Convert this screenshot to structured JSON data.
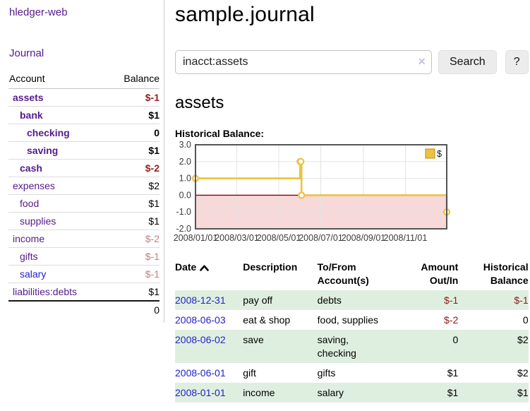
{
  "app_title": "hledger-web",
  "sidebar": {
    "journal_link": "Journal",
    "accounts": {
      "header_account": "Account",
      "header_balance": "Balance",
      "rows": [
        {
          "name": "assets",
          "balance": "$-1",
          "level": 1,
          "bold": true
        },
        {
          "name": "bank",
          "balance": "$1",
          "level": 2,
          "bold": true
        },
        {
          "name": "checking",
          "balance": "0",
          "level": 3,
          "bold": true
        },
        {
          "name": "saving",
          "balance": "$1",
          "level": 3,
          "bold": true
        },
        {
          "name": "cash",
          "balance": "$-2",
          "level": 2,
          "bold": true
        },
        {
          "name": "expenses",
          "balance": "$2",
          "level": 1,
          "bold": false
        },
        {
          "name": "food",
          "balance": "$1",
          "level": 2,
          "bold": false
        },
        {
          "name": "supplies",
          "balance": "$1",
          "level": 2,
          "bold": false
        },
        {
          "name": "income",
          "balance": "$-2",
          "level": 1,
          "bold": false
        },
        {
          "name": "gifts",
          "balance": "$-1",
          "level": 2,
          "bold": false
        },
        {
          "name": "salary",
          "balance": "$-1",
          "level": 2,
          "bold": false,
          "link_style": "blue"
        },
        {
          "name": "liabilities:debts",
          "balance": "$1",
          "level": 1,
          "bold": false
        }
      ],
      "total": "0"
    }
  },
  "main": {
    "page_title": "sample.journal",
    "search": {
      "value": "inacct:assets",
      "clear_icon": "×",
      "search_button": "Search",
      "help_button": "?"
    },
    "account_heading": "assets",
    "chart_heading": "Historical Balance:"
  },
  "chart_data": {
    "type": "line",
    "title": "Historical Balance",
    "steps": true,
    "grid": true,
    "xlim_days": [
      0,
      365
    ],
    "ylim": [
      -2,
      3
    ],
    "x_ticks": [
      {
        "label": "2008/01/01",
        "day": 0
      },
      {
        "label": "2008/03/01",
        "day": 60
      },
      {
        "label": "2008/05/01",
        "day": 121
      },
      {
        "label": "2008/07/01",
        "day": 182
      },
      {
        "label": "2008/09/01",
        "day": 244
      },
      {
        "label": "2008/11/01",
        "day": 305
      }
    ],
    "y_ticks": [
      3,
      2,
      1,
      0,
      -1,
      -2
    ],
    "y_tick_labels": [
      "3.0",
      "2.0",
      "1.0",
      "0.0",
      "-1.0",
      "-2.0"
    ],
    "series": [
      {
        "name": "$",
        "color": "#edc240",
        "points": [
          {
            "date": "2008-01-01",
            "day": 0,
            "value": 1
          },
          {
            "date": "2008-06-01",
            "day": 152,
            "value": 2
          },
          {
            "date": "2008-06-02",
            "day": 153,
            "value": 2
          },
          {
            "date": "2008-06-03",
            "day": 154,
            "value": 0
          },
          {
            "date": "2008-12-31",
            "day": 365,
            "value": -1
          }
        ]
      }
    ],
    "legend": {
      "label": "$",
      "swatch_color": "#edc240",
      "position": "top-right"
    },
    "negative_region_color": "#f8d9d9",
    "zero_line_color": "#8b0000"
  },
  "register": {
    "headers": {
      "date": "Date",
      "description": "Description",
      "accounts": "To/From Account(s)",
      "amount": "Amount Out/In",
      "balance": "Historical Balance"
    },
    "sort": {
      "column": "date",
      "direction": "ascending"
    },
    "rows": [
      {
        "date": "2008-12-31",
        "description": "pay off",
        "accounts": "debts",
        "amount": "$-1",
        "balance": "$-1"
      },
      {
        "date": "2008-06-03",
        "description": "eat & shop",
        "accounts": "food, supplies",
        "amount": "$-2",
        "balance": "0"
      },
      {
        "date": "2008-06-02",
        "description": "save",
        "accounts": "saving, checking",
        "amount": "0",
        "balance": "$2"
      },
      {
        "date": "2008-06-01",
        "description": "gift",
        "accounts": "gifts",
        "amount": "$1",
        "balance": "$2"
      },
      {
        "date": "2008-01-01",
        "description": "income",
        "accounts": "salary",
        "amount": "$1",
        "balance": "$1"
      }
    ]
  },
  "colors": {
    "link_purple": "#551a8b",
    "link_blue": "#2222cc",
    "negative_strong": "#941f1f",
    "negative_soft": "#c47e7e",
    "row_stripe_green": "#dfefdf",
    "series_gold": "#edc240",
    "chart_border": "#545454"
  }
}
